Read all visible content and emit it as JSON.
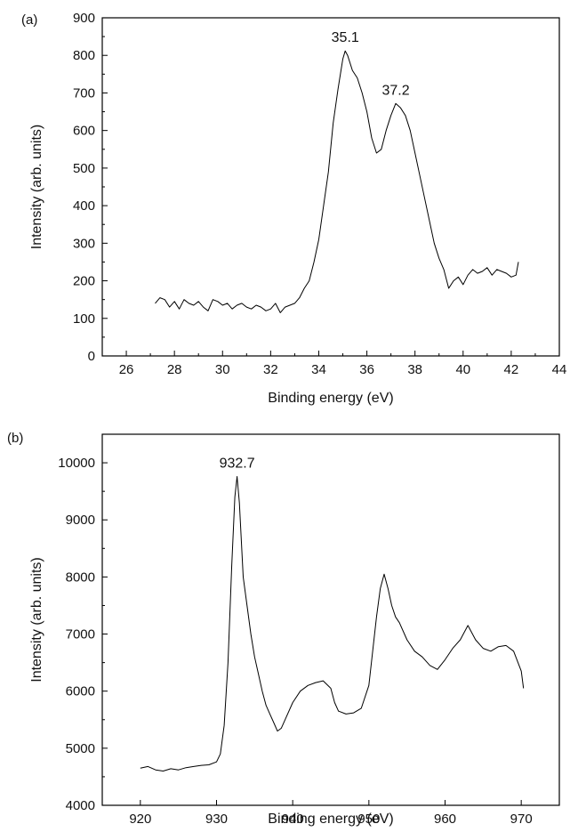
{
  "chart_data": [
    {
      "type": "line",
      "panel_label": "(a)",
      "xlabel": "Binding energy (eV)",
      "ylabel": "Intensity (arb. units)",
      "xlim": [
        25,
        44
      ],
      "ylim": [
        0,
        900
      ],
      "xticks": [
        26,
        28,
        30,
        32,
        34,
        36,
        38,
        40,
        42,
        44
      ],
      "yticks": [
        0,
        100,
        200,
        300,
        400,
        500,
        600,
        700,
        800,
        900
      ],
      "grid": false,
      "annotations": [
        {
          "text": "35.1",
          "x": 35.1,
          "y": 812
        },
        {
          "text": "37.2",
          "x": 37.2,
          "y": 672
        }
      ],
      "series": [
        {
          "x": [
            27.2,
            27.4,
            27.6,
            27.8,
            28.0,
            28.2,
            28.4,
            28.6,
            28.8,
            29.0,
            29.2,
            29.4,
            29.6,
            29.8,
            30.0,
            30.2,
            30.4,
            30.6,
            30.8,
            31.0,
            31.2,
            31.4,
            31.6,
            31.8,
            32.0,
            32.2,
            32.4,
            32.6,
            32.8,
            33.0,
            33.2,
            33.4,
            33.6,
            33.8,
            34.0,
            34.2,
            34.4,
            34.6,
            34.8,
            35.0,
            35.1,
            35.2,
            35.4,
            35.6,
            35.8,
            36.0,
            36.2,
            36.4,
            36.6,
            36.8,
            37.0,
            37.2,
            37.4,
            37.6,
            37.8,
            38.0,
            38.2,
            38.4,
            38.6,
            38.8,
            39.0,
            39.2,
            39.4,
            39.6,
            39.8,
            40.0,
            40.2,
            40.4,
            40.6,
            40.8,
            41.0,
            41.2,
            41.4,
            41.6,
            41.8,
            42.0,
            42.2,
            42.3
          ],
          "y": [
            140,
            155,
            150,
            130,
            145,
            125,
            150,
            140,
            135,
            145,
            130,
            120,
            150,
            145,
            135,
            140,
            125,
            135,
            140,
            130,
            125,
            135,
            130,
            120,
            125,
            140,
            115,
            130,
            135,
            140,
            155,
            180,
            200,
            250,
            310,
            400,
            490,
            620,
            710,
            790,
            812,
            800,
            760,
            740,
            700,
            650,
            580,
            540,
            550,
            600,
            640,
            672,
            660,
            640,
            600,
            540,
            480,
            420,
            360,
            300,
            260,
            230,
            180,
            200,
            210,
            190,
            215,
            230,
            220,
            225,
            235,
            215,
            230,
            225,
            220,
            210,
            215,
            250
          ]
        }
      ]
    },
    {
      "type": "line",
      "panel_label": "(b)",
      "xlabel": "Binding energy (eV)",
      "ylabel": "Intensity (arb. units)",
      "xlim": [
        915,
        975
      ],
      "ylim": [
        4000,
        10500
      ],
      "xticks": [
        920,
        930,
        940,
        950,
        960,
        970
      ],
      "yticks": [
        4000,
        5000,
        6000,
        7000,
        8000,
        9000,
        10000
      ],
      "grid": false,
      "annotations": [
        {
          "text": "932.7",
          "x": 932.7,
          "y": 9760
        }
      ],
      "series": [
        {
          "x": [
            920,
            921,
            922,
            923,
            924,
            925,
            926,
            927,
            928,
            929,
            930,
            930.5,
            931,
            931.5,
            932,
            932.4,
            932.7,
            933,
            933.5,
            934,
            934.5,
            935,
            935.5,
            936,
            936.5,
            937,
            937.5,
            938,
            938.5,
            939,
            940,
            941,
            942,
            943,
            944,
            945,
            945.5,
            946,
            947,
            948,
            949,
            950,
            950.5,
            951,
            951.5,
            952,
            952.5,
            953,
            953.5,
            954,
            955,
            956,
            957,
            958,
            959,
            960,
            961,
            962,
            963,
            964,
            965,
            966,
            967,
            968,
            969,
            970,
            970.3
          ],
          "y": [
            4650,
            4680,
            4620,
            4600,
            4640,
            4620,
            4660,
            4680,
            4700,
            4710,
            4760,
            4900,
            5400,
            6500,
            8200,
            9400,
            9760,
            9300,
            8000,
            7500,
            7000,
            6600,
            6300,
            6000,
            5750,
            5600,
            5450,
            5300,
            5350,
            5500,
            5800,
            6000,
            6100,
            6150,
            6180,
            6050,
            5800,
            5650,
            5600,
            5620,
            5700,
            6100,
            6700,
            7300,
            7800,
            8050,
            7800,
            7500,
            7300,
            7200,
            6900,
            6700,
            6600,
            6450,
            6380,
            6550,
            6750,
            6900,
            7150,
            6900,
            6750,
            6700,
            6780,
            6800,
            6700,
            6350,
            6050
          ]
        }
      ]
    }
  ]
}
